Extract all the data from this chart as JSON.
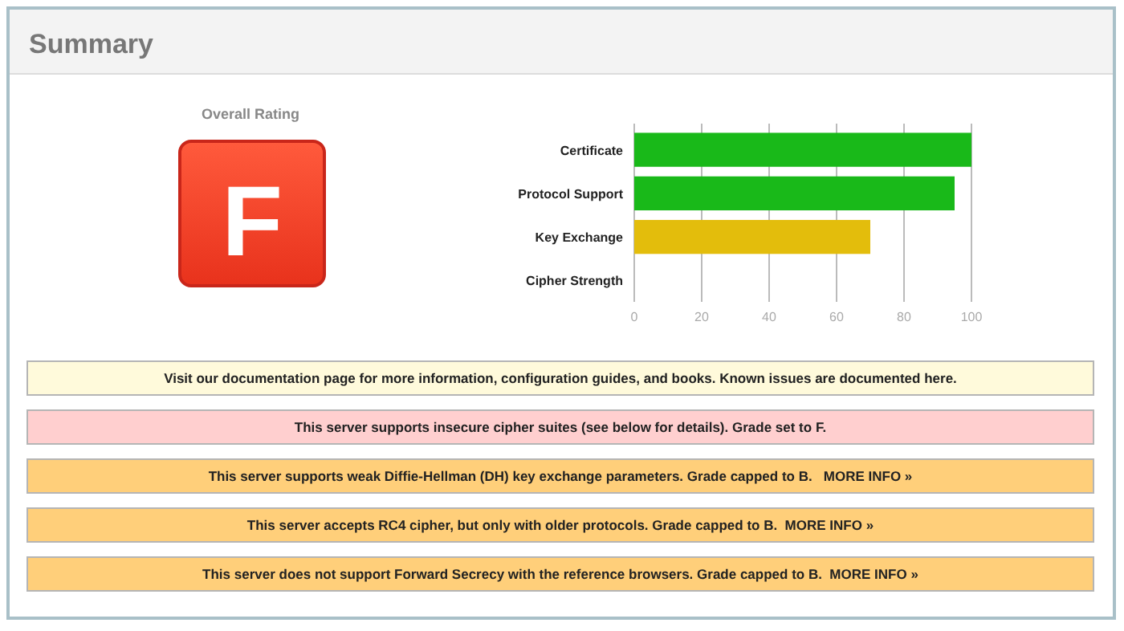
{
  "chart_data": {
    "type": "bar",
    "orientation": "horizontal",
    "title": "Summary",
    "categories": [
      "Certificate",
      "Protocol Support",
      "Key Exchange",
      "Cipher Strength"
    ],
    "values": [
      100,
      95,
      70,
      0
    ],
    "colors": [
      "#19b919",
      "#19b919",
      "#e3bd0c",
      "#19b919"
    ],
    "xlim": [
      0,
      100
    ],
    "xticks": [
      0,
      20,
      40,
      60,
      80,
      100
    ],
    "grid": "x",
    "annotations": [
      "Overall Rating",
      "F",
      "Visit our documentation page for more information, configuration guides, and books. Known issues are documented here.",
      "This server supports insecure cipher suites (see below for details). Grade set to F.",
      "This server supports weak Diffie-Hellman (DH) key exchange parameters. Grade capped to B.   MORE INFO »",
      "This server accepts RC4 cipher, but only with older protocols. Grade capped to B.  MORE INFO »",
      "This server does not support Forward Secrecy with the reference browsers. Grade capped to B.  MORE INFO »"
    ]
  }
}
